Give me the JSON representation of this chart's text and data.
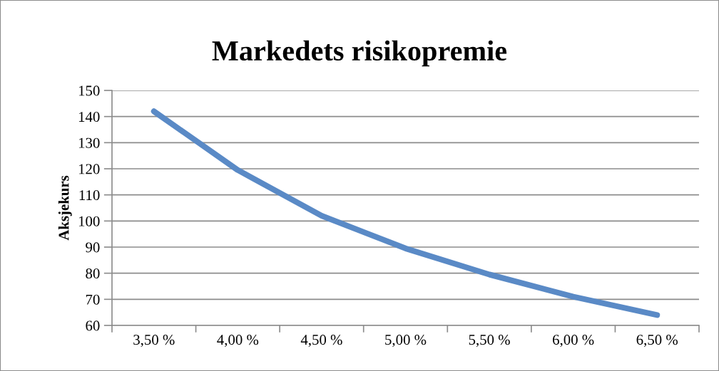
{
  "chart_data": {
    "type": "line",
    "title": "Markedets risikopremie",
    "ylabel": "Aksjekurs",
    "categories": [
      "3,50 %",
      "4,00 %",
      "4,50 %",
      "5,00 %",
      "5,50 %",
      "6,00 %",
      "6,50 %"
    ],
    "series": [
      {
        "color": "#5a8ac6",
        "values": [
          142,
          119.5,
          102,
          89.5,
          79.5,
          71,
          64
        ]
      }
    ],
    "ylim": [
      60,
      150
    ],
    "yticks": [
      60,
      70,
      80,
      90,
      100,
      110,
      120,
      130,
      140,
      150
    ],
    "grid": "y"
  }
}
